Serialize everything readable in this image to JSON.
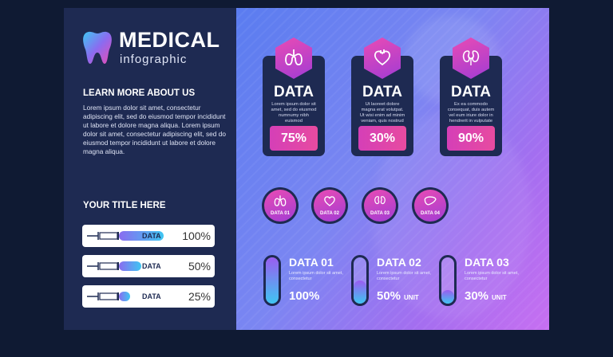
{
  "brand": {
    "name": "MEDICAL",
    "sub": "infographic"
  },
  "about": {
    "heading": "LEARN MORE ABOUT US",
    "text": "Lorem ipsum dolor sit amet, consectetur adipiscing elit, sed do eiusmod tempor incididunt ut labore et dolore magna aliqua. Lorem ipsum dolor sit amet, consectetur adipiscing elit, sed do eiusmod tempor incididunt ut labore et dolore magna aliqua."
  },
  "syringes": {
    "heading": "YOUR TITLE HERE",
    "items": [
      {
        "label": "DATA",
        "pct": "100%",
        "level": 1.0
      },
      {
        "label": "DATA",
        "pct": "50%",
        "level": 0.5
      },
      {
        "label": "DATA",
        "pct": "25%",
        "level": 0.25
      }
    ]
  },
  "cards": [
    {
      "icon": "lungs-icon",
      "title": "DATA",
      "text": "Lorem ipsum dolor sit amet, sed do eiusmod numnumy nibh euismod",
      "pct": "75%"
    },
    {
      "icon": "heart-icon",
      "title": "DATA",
      "text": "Ut laoreet dolore magna erat volutpat. Ut wisi enim ad minim veniam, quis nostrud",
      "pct": "30%"
    },
    {
      "icon": "kidneys-icon",
      "title": "DATA",
      "text": "Ex ea commodo consequat, duis autem vel eum iriure dolor in hendrerit in vulputate",
      "pct": "90%"
    }
  ],
  "circles": [
    {
      "icon": "lungs-icon",
      "label": "DATA 01"
    },
    {
      "icon": "heart-icon",
      "label": "DATA 02"
    },
    {
      "icon": "kidneys-icon",
      "label": "DATA 03"
    },
    {
      "icon": "liver-icon",
      "label": "DATA 04"
    }
  ],
  "gauges": [
    {
      "title": "DATA 01",
      "text": "Lorem ipsum dolor sit amet, consectetur",
      "value": "100%",
      "unit": "",
      "level": 1.0
    },
    {
      "title": "DATA 02",
      "text": "Lorem ipsum dolor sit amet, consectetur",
      "value": "50%",
      "unit": "UNIT",
      "level": 0.5
    },
    {
      "title": "DATA 03",
      "text": "Lorem ipsum dolor sit amet, consectetur",
      "value": "30%",
      "unit": "UNIT",
      "level": 0.3
    }
  ],
  "colors": {
    "panel": "#1e2a52",
    "accent": "#e94bb4",
    "background": "#0f1a33"
  }
}
